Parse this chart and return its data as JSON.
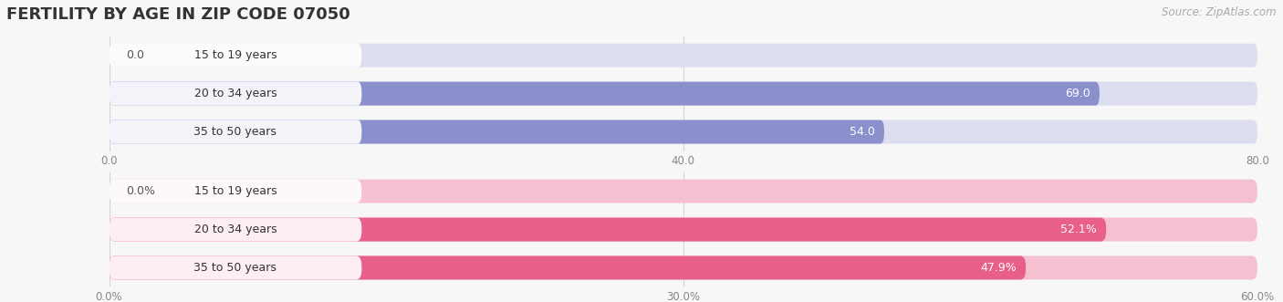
{
  "title": "FERTILITY BY AGE IN ZIP CODE 07050",
  "source": "Source: ZipAtlas.com",
  "top_chart": {
    "categories": [
      "15 to 19 years",
      "20 to 34 years",
      "35 to 50 years"
    ],
    "values": [
      0.0,
      69.0,
      54.0
    ],
    "xlim": [
      0,
      80
    ],
    "xticks": [
      0.0,
      40.0,
      80.0
    ],
    "bar_color": "#8b8fcc",
    "bar_bg_color": "#ddddf0",
    "label_pill_color": "#ffffff"
  },
  "bottom_chart": {
    "categories": [
      "15 to 19 years",
      "20 to 34 years",
      "35 to 50 years"
    ],
    "values": [
      0.0,
      52.1,
      47.9
    ],
    "xlim": [
      0,
      60
    ],
    "xticks": [
      0.0,
      30.0,
      60.0
    ],
    "bar_color": "#e8608a",
    "bar_bg_color": "#f5c0d0",
    "label_pill_color": "#ffffff"
  },
  "bar_height": 0.62,
  "fig_bg_color": "#f7f7f7",
  "plot_bg_color": "#f7f7f7",
  "title_fontsize": 13,
  "label_fontsize": 9,
  "tick_fontsize": 8.5,
  "source_fontsize": 8.5,
  "value_fontsize": 9
}
